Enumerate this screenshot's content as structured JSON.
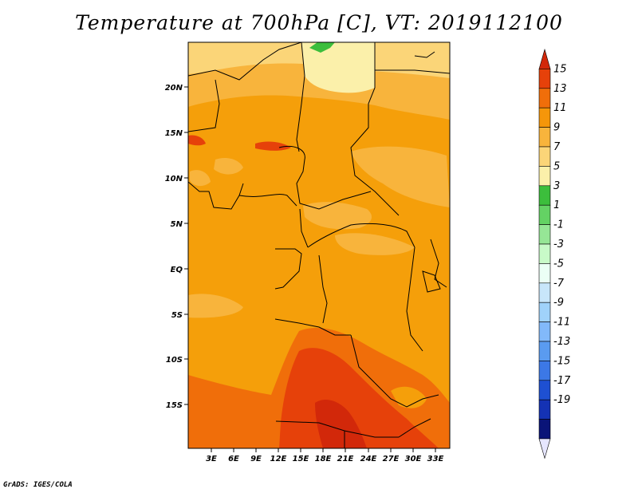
{
  "title": "Temperature at 700hPa [C], VT: 2019112100",
  "credit": "GrADS: IGES/COLA",
  "map": {
    "lon_labels": [
      "3E",
      "6E",
      "9E",
      "12E",
      "15E",
      "18E",
      "21E",
      "24E",
      "27E",
      "30E",
      "33E"
    ],
    "lat_labels": [
      "20N",
      "15N",
      "10N",
      "5N",
      "EQ",
      "5S",
      "10S",
      "15S"
    ]
  },
  "colorbar": {
    "labels": [
      "15",
      "13",
      "11",
      "9",
      "7",
      "5",
      "3",
      "1",
      "-1",
      "-3",
      "-5",
      "-7",
      "-9",
      "-11",
      "-13",
      "-15",
      "-17",
      "-19"
    ],
    "colors": [
      "#d2280a",
      "#e6410a",
      "#f06e0a",
      "#f5960a",
      "#f8b43c",
      "#fbd578",
      "#fbf0aa",
      "#3cbe3c",
      "#64d264",
      "#96e696",
      "#c8fac8",
      "#ebfff5",
      "#c8e6fa",
      "#a0d2fa",
      "#82b9fa",
      "#5a9bf0",
      "#3c78e6",
      "#1e50d2",
      "#1432b4",
      "#0a1478",
      "#e6e6ff"
    ]
  },
  "colors": {
    "land_base": "#f59f0a",
    "light_orange": "#f8b43c",
    "pale_yellow": "#fbd578",
    "cream": "#fbf0aa",
    "dark_orange": "#f06e0a",
    "red_orange": "#e6410a",
    "deep_red": "#d2280a",
    "green": "#3cbe3c"
  }
}
